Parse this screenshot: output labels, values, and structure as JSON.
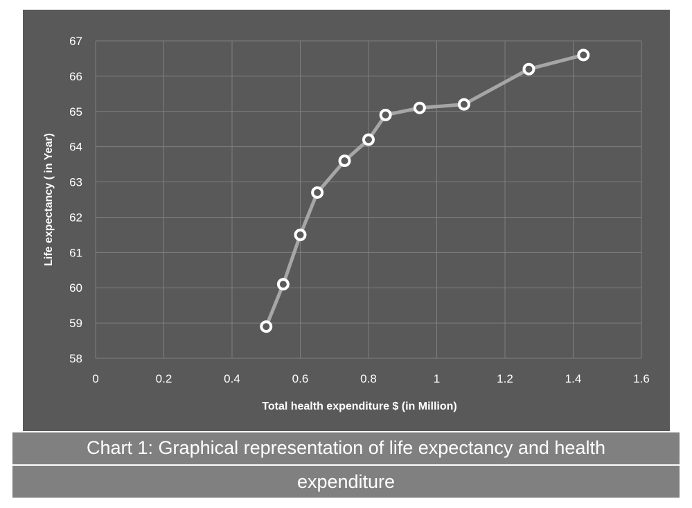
{
  "chart_data": {
    "type": "line",
    "xlabel": "Total health expenditure $ (in Million)",
    "ylabel": "Life expectancy ( in Year)",
    "xlim": [
      0,
      1.6
    ],
    "ylim": [
      58,
      67
    ],
    "x_ticks": [
      "0",
      "0.2",
      "0.4",
      "0.6",
      "0.8",
      "1",
      "1.2",
      "1.4",
      "1.6"
    ],
    "y_ticks": [
      "58",
      "59",
      "60",
      "61",
      "62",
      "63",
      "64",
      "65",
      "66",
      "67"
    ],
    "grid": true,
    "series": [
      {
        "x": [
          0.5,
          0.55,
          0.6,
          0.65,
          0.73,
          0.8,
          0.85,
          0.95,
          1.08,
          1.27,
          1.43
        ],
        "y": [
          58.9,
          60.1,
          61.5,
          62.7,
          63.6,
          64.2,
          64.9,
          65.1,
          65.2,
          66.2,
          66.6
        ]
      }
    ],
    "colors": {
      "background": "#595959",
      "line": "#a6a6a6",
      "marker_stroke": "#ffffff",
      "marker_fill": "#595959",
      "grid": "#7f7f7f",
      "text": "#ffffff"
    }
  },
  "caption": {
    "line1": "Chart 1: Graphical representation of life expectancy and health",
    "line2": "expenditure"
  }
}
